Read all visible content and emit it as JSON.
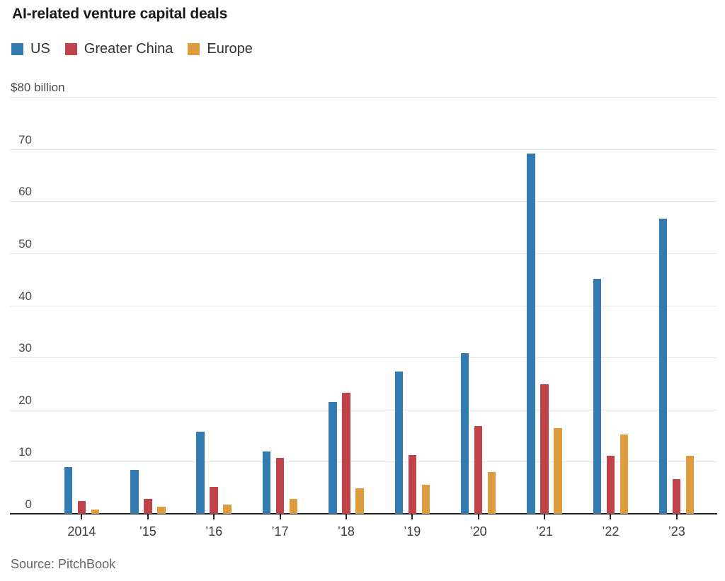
{
  "chart_data": {
    "type": "bar",
    "title": "AI-related venture capital deals",
    "ylabel_top": "$80 billion",
    "y_ticks": [
      0,
      10,
      20,
      30,
      40,
      50,
      60,
      70
    ],
    "ylim": [
      0,
      80
    ],
    "grid": true,
    "legend_position": "top-left",
    "categories": [
      "2014",
      "’15",
      "’16",
      "’17",
      "’18",
      "’19",
      "’20",
      "’21",
      "’22",
      "’23"
    ],
    "series": [
      {
        "name": "US",
        "color": "#337AB0",
        "values": [
          8.9,
          8.4,
          15.7,
          11.9,
          21.4,
          27.3,
          30.9,
          69.2,
          45.1,
          56.6
        ]
      },
      {
        "name": "Greater China",
        "color": "#BF4348",
        "values": [
          2.4,
          2.9,
          5.2,
          10.8,
          23.3,
          11.3,
          16.8,
          24.9,
          11.2,
          6.7
        ]
      },
      {
        "name": "Europe",
        "color": "#DD9C3D",
        "values": [
          0.8,
          1.3,
          1.7,
          2.9,
          4.9,
          5.6,
          8.0,
          16.5,
          15.2,
          11.2
        ]
      }
    ],
    "source": "Source: PitchBook",
    "axis_color": "#1f1f1f",
    "gridline_color": "#e7e7e7"
  }
}
